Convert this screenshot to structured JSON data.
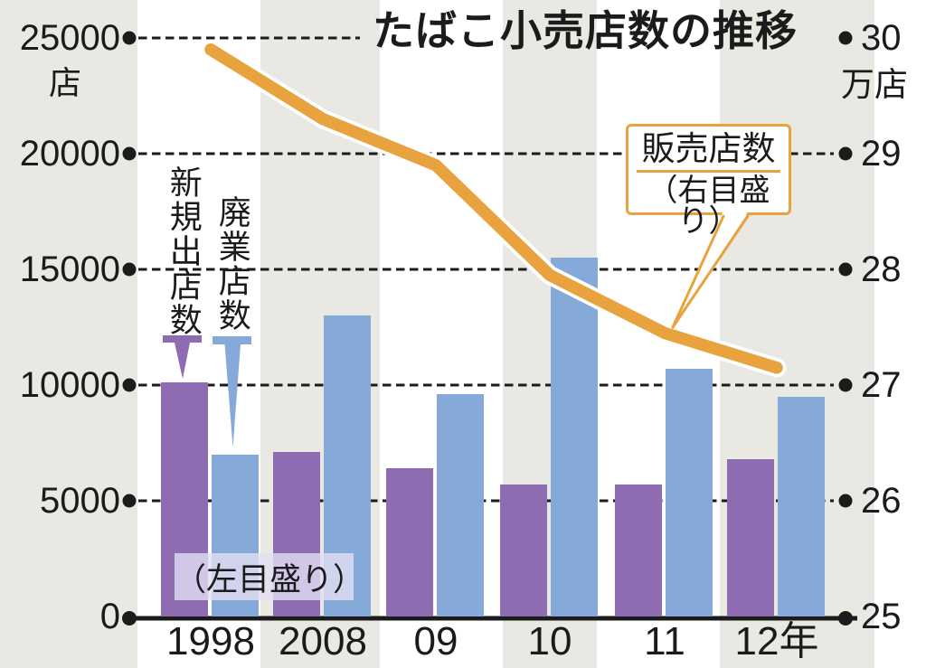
{
  "chart_data": {
    "type": "combo-bar-line",
    "title": "たばこ小売店数の推移",
    "categories": [
      "1998",
      "2008",
      "09",
      "10",
      "11",
      "12年"
    ],
    "bar_series": [
      {
        "name": "新規出店数",
        "axis": "left",
        "color": "#8d6cb2",
        "values": [
          10100,
          7100,
          6400,
          5700,
          5700,
          6800
        ]
      },
      {
        "name": "廃業店数",
        "axis": "left",
        "color": "#85a9d8",
        "values": [
          7000,
          13000,
          9600,
          15500,
          10700,
          9500
        ]
      }
    ],
    "line_series": {
      "name": "販売店数",
      "scale_note": "（右目盛り）",
      "axis": "right",
      "color": "#e8a33e",
      "values": [
        29.9,
        29.3,
        28.9,
        27.95,
        27.45,
        27.15
      ]
    },
    "left_axis": {
      "unit": "店",
      "min": 0,
      "max": 25000,
      "ticks": [
        0,
        5000,
        10000,
        15000,
        20000,
        25000
      ]
    },
    "right_axis": {
      "unit": "万店",
      "min": 25,
      "max": 30,
      "ticks": [
        25,
        26,
        27,
        28,
        29,
        30
      ]
    },
    "annotations": {
      "left_scale_note": "（左目盛り）"
    },
    "grid": "dashed-horizontal",
    "legend_position": "callout-box-pointing-to-line"
  },
  "colors": {
    "background": "#eae8e2",
    "stripe": "#ffffff",
    "ink": "#1b1b1b",
    "purple": "#8d6cb2",
    "blue": "#85a9d8",
    "orange": "#e8a33e",
    "note_bg": "rgba(226,222,243,0.8)"
  }
}
